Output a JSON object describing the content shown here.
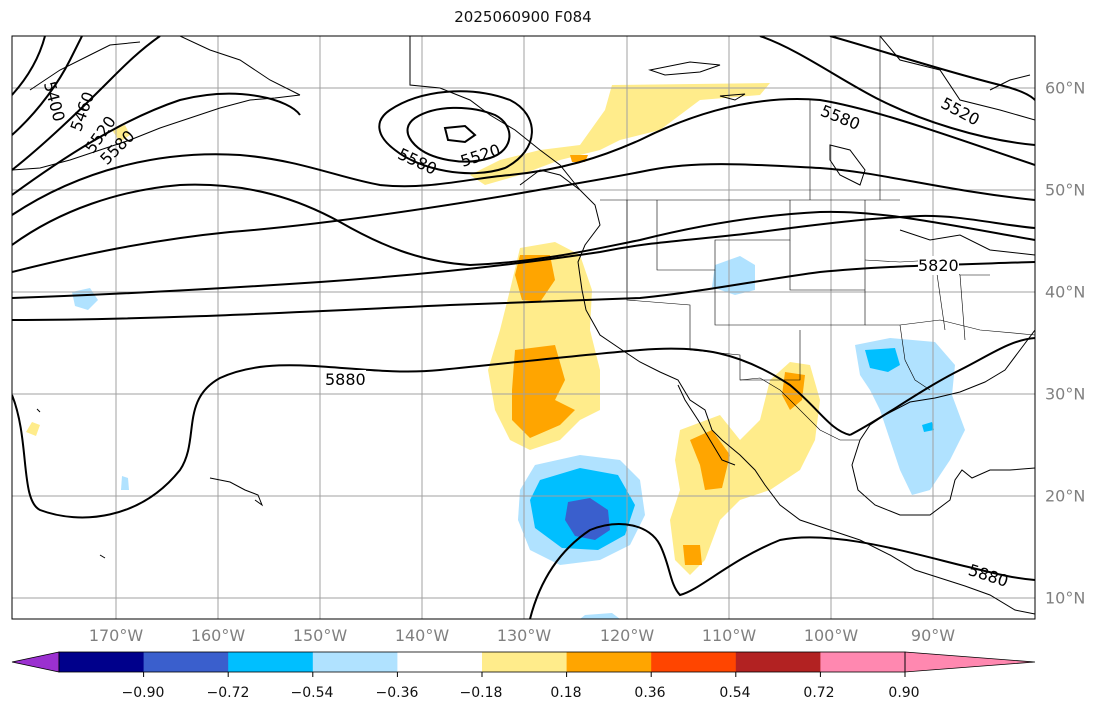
{
  "title": "2025060900 F084",
  "map": {
    "lon_labels": [
      "170°W",
      "160°W",
      "150°W",
      "140°W",
      "130°W",
      "120°W",
      "110°W",
      "100°W",
      "90°W"
    ],
    "lat_labels": [
      "60°N",
      "50°N",
      "40°N",
      "30°N",
      "20°N",
      "10°N"
    ],
    "contour_labels": [
      "5400",
      "5460",
      "5520",
      "5580",
      "5580",
      "5520",
      "5580",
      "5520",
      "5820",
      "5880",
      "5880"
    ],
    "gridline_color": "#a0a0a0",
    "contour_color": "#000000"
  },
  "colorbar": {
    "ticks": [
      "−0.90",
      "−0.72",
      "−0.54",
      "−0.36",
      "−0.18",
      "0.18",
      "0.36",
      "0.54",
      "0.72",
      "0.90"
    ],
    "colors": [
      "#9b30d0",
      "#00008b",
      "#3a5fcd",
      "#00bfff",
      "#b0e2ff",
      "#ffffff",
      "#ffec8b",
      "#ffa500",
      "#ff4500",
      "#b22222",
      "#ff88b0",
      "#ff88b0"
    ]
  }
}
